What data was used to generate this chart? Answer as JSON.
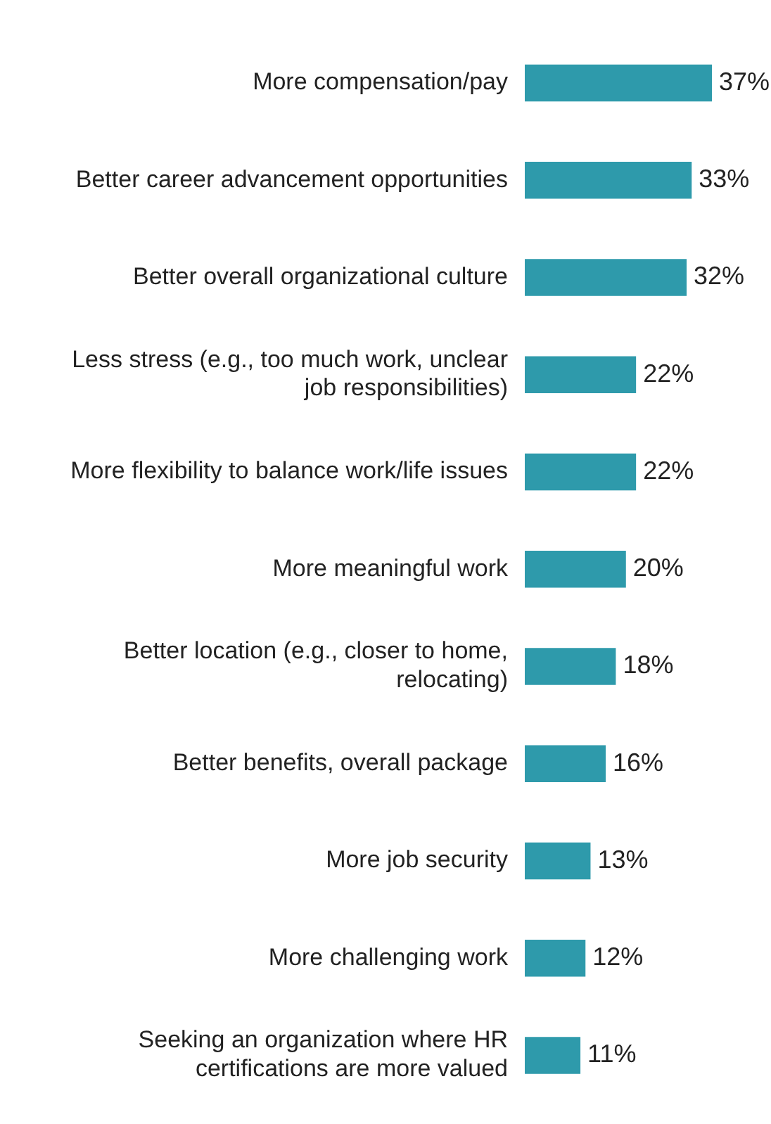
{
  "chart_data": {
    "type": "bar",
    "orientation": "horizontal",
    "data_labels": true,
    "categories": [
      "More compensation/pay",
      "Better career advancement opportunities",
      "Better overall organizational culture",
      "Less stress (e.g., too much work, unclear job responsibilities)",
      "More flexibility to balance work/life issues",
      "More meaningful work",
      "Better location (e.g., closer to home, relocating)",
      "Better benefits, overall package",
      "More job security",
      "More challenging work",
      "Seeking an organization where HR certifications are more valued"
    ],
    "values": [
      37,
      33,
      32,
      22,
      22,
      20,
      18,
      16,
      13,
      12,
      11
    ],
    "color": "#2e9aab",
    "value_labels": [
      "37%",
      "33%",
      "32%",
      "22%",
      "22%",
      "20%",
      "18%",
      "16%",
      "13%",
      "12%",
      "11%"
    ]
  }
}
